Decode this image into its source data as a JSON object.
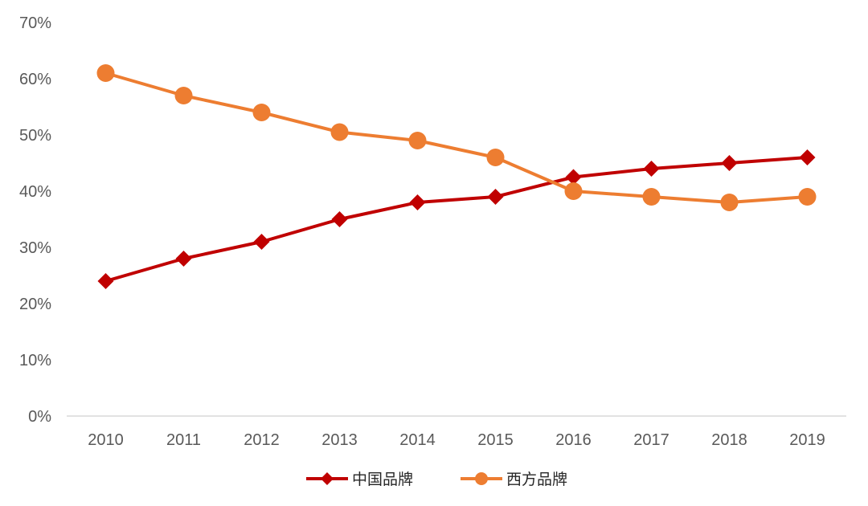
{
  "chart_data": {
    "type": "line",
    "title": "",
    "xlabel": "",
    "ylabel": "",
    "categories": [
      "2010",
      "2011",
      "2012",
      "2013",
      "2014",
      "2015",
      "2016",
      "2017",
      "2018",
      "2019"
    ],
    "y_ticks": [
      "0%",
      "10%",
      "20%",
      "30%",
      "40%",
      "50%",
      "60%",
      "70%"
    ],
    "ylim": [
      0,
      70
    ],
    "grid": false,
    "legend_position": "bottom",
    "series": [
      {
        "name": "中国品牌",
        "marker": "diamond",
        "color": "#c00000",
        "values": [
          24,
          28,
          31,
          35,
          38,
          39,
          42.5,
          44,
          45,
          46
        ]
      },
      {
        "name": "西方品牌",
        "marker": "circle",
        "color": "#ed7d31",
        "values": [
          61,
          57,
          54,
          50.5,
          49,
          46,
          40,
          39,
          38,
          39
        ]
      }
    ]
  }
}
